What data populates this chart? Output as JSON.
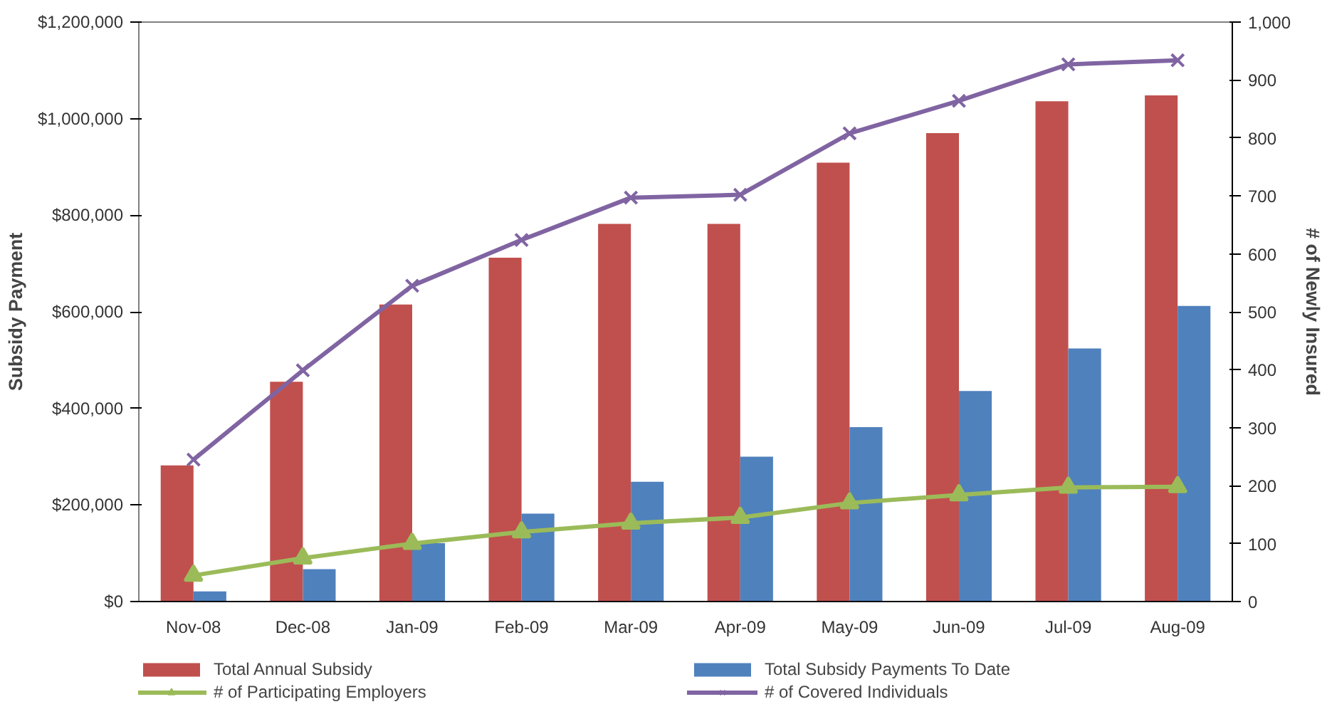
{
  "chart_data": {
    "type": "bar",
    "categories": [
      "Nov-08",
      "Dec-08",
      "Jan-09",
      "Feb-09",
      "Mar-09",
      "Apr-09",
      "May-09",
      "Jun-09",
      "Jul-09",
      "Aug-09"
    ],
    "ylabel": "Subsidy Payment",
    "y2label": "# of Newly Insured",
    "ylim": [
      0,
      1200000
    ],
    "yticks": [
      {
        "value": 0,
        "label": "$0"
      },
      {
        "value": 200000,
        "label": "$200,000"
      },
      {
        "value": 400000,
        "label": "$400,000"
      },
      {
        "value": 600000,
        "label": "$600,000"
      },
      {
        "value": 800000,
        "label": "$800,000"
      },
      {
        "value": 1000000,
        "label": "$1,000,000"
      },
      {
        "value": 1200000,
        "label": "$1,200,000"
      }
    ],
    "y2lim": [
      0,
      1000
    ],
    "y2ticks": [
      0,
      100,
      200,
      300,
      400,
      500,
      600,
      700,
      800,
      900,
      {
        "value": 1000,
        "label": "1,000"
      }
    ],
    "grid": false,
    "legend": "bottom",
    "series": [
      {
        "name": "Total Annual Subsidy",
        "color": "#c0504d",
        "values": [
          282000,
          455000,
          615000,
          712000,
          782000,
          782000,
          909000,
          970000,
          1036000,
          1048000
        ]
      },
      {
        "name": "Total Subsidy Payments To Date",
        "color": "#4f81bd",
        "values": [
          21000,
          67000,
          121000,
          182000,
          248000,
          300000,
          361000,
          436000,
          524000,
          612000
        ]
      },
      {
        "name": "# of Participating Employers",
        "type": "line",
        "axis": "y2",
        "marker": "triangle",
        "color": "#9bbb59",
        "values": [
          45,
          75,
          100,
          120,
          135,
          145,
          170,
          184,
          197,
          198
        ]
      },
      {
        "name": "# of Covered Individuals",
        "type": "line",
        "axis": "y2",
        "marker": "cross",
        "color": "#8064a2",
        "values": [
          245,
          399,
          545,
          624,
          697,
          702,
          808,
          864,
          927,
          934
        ]
      }
    ]
  }
}
